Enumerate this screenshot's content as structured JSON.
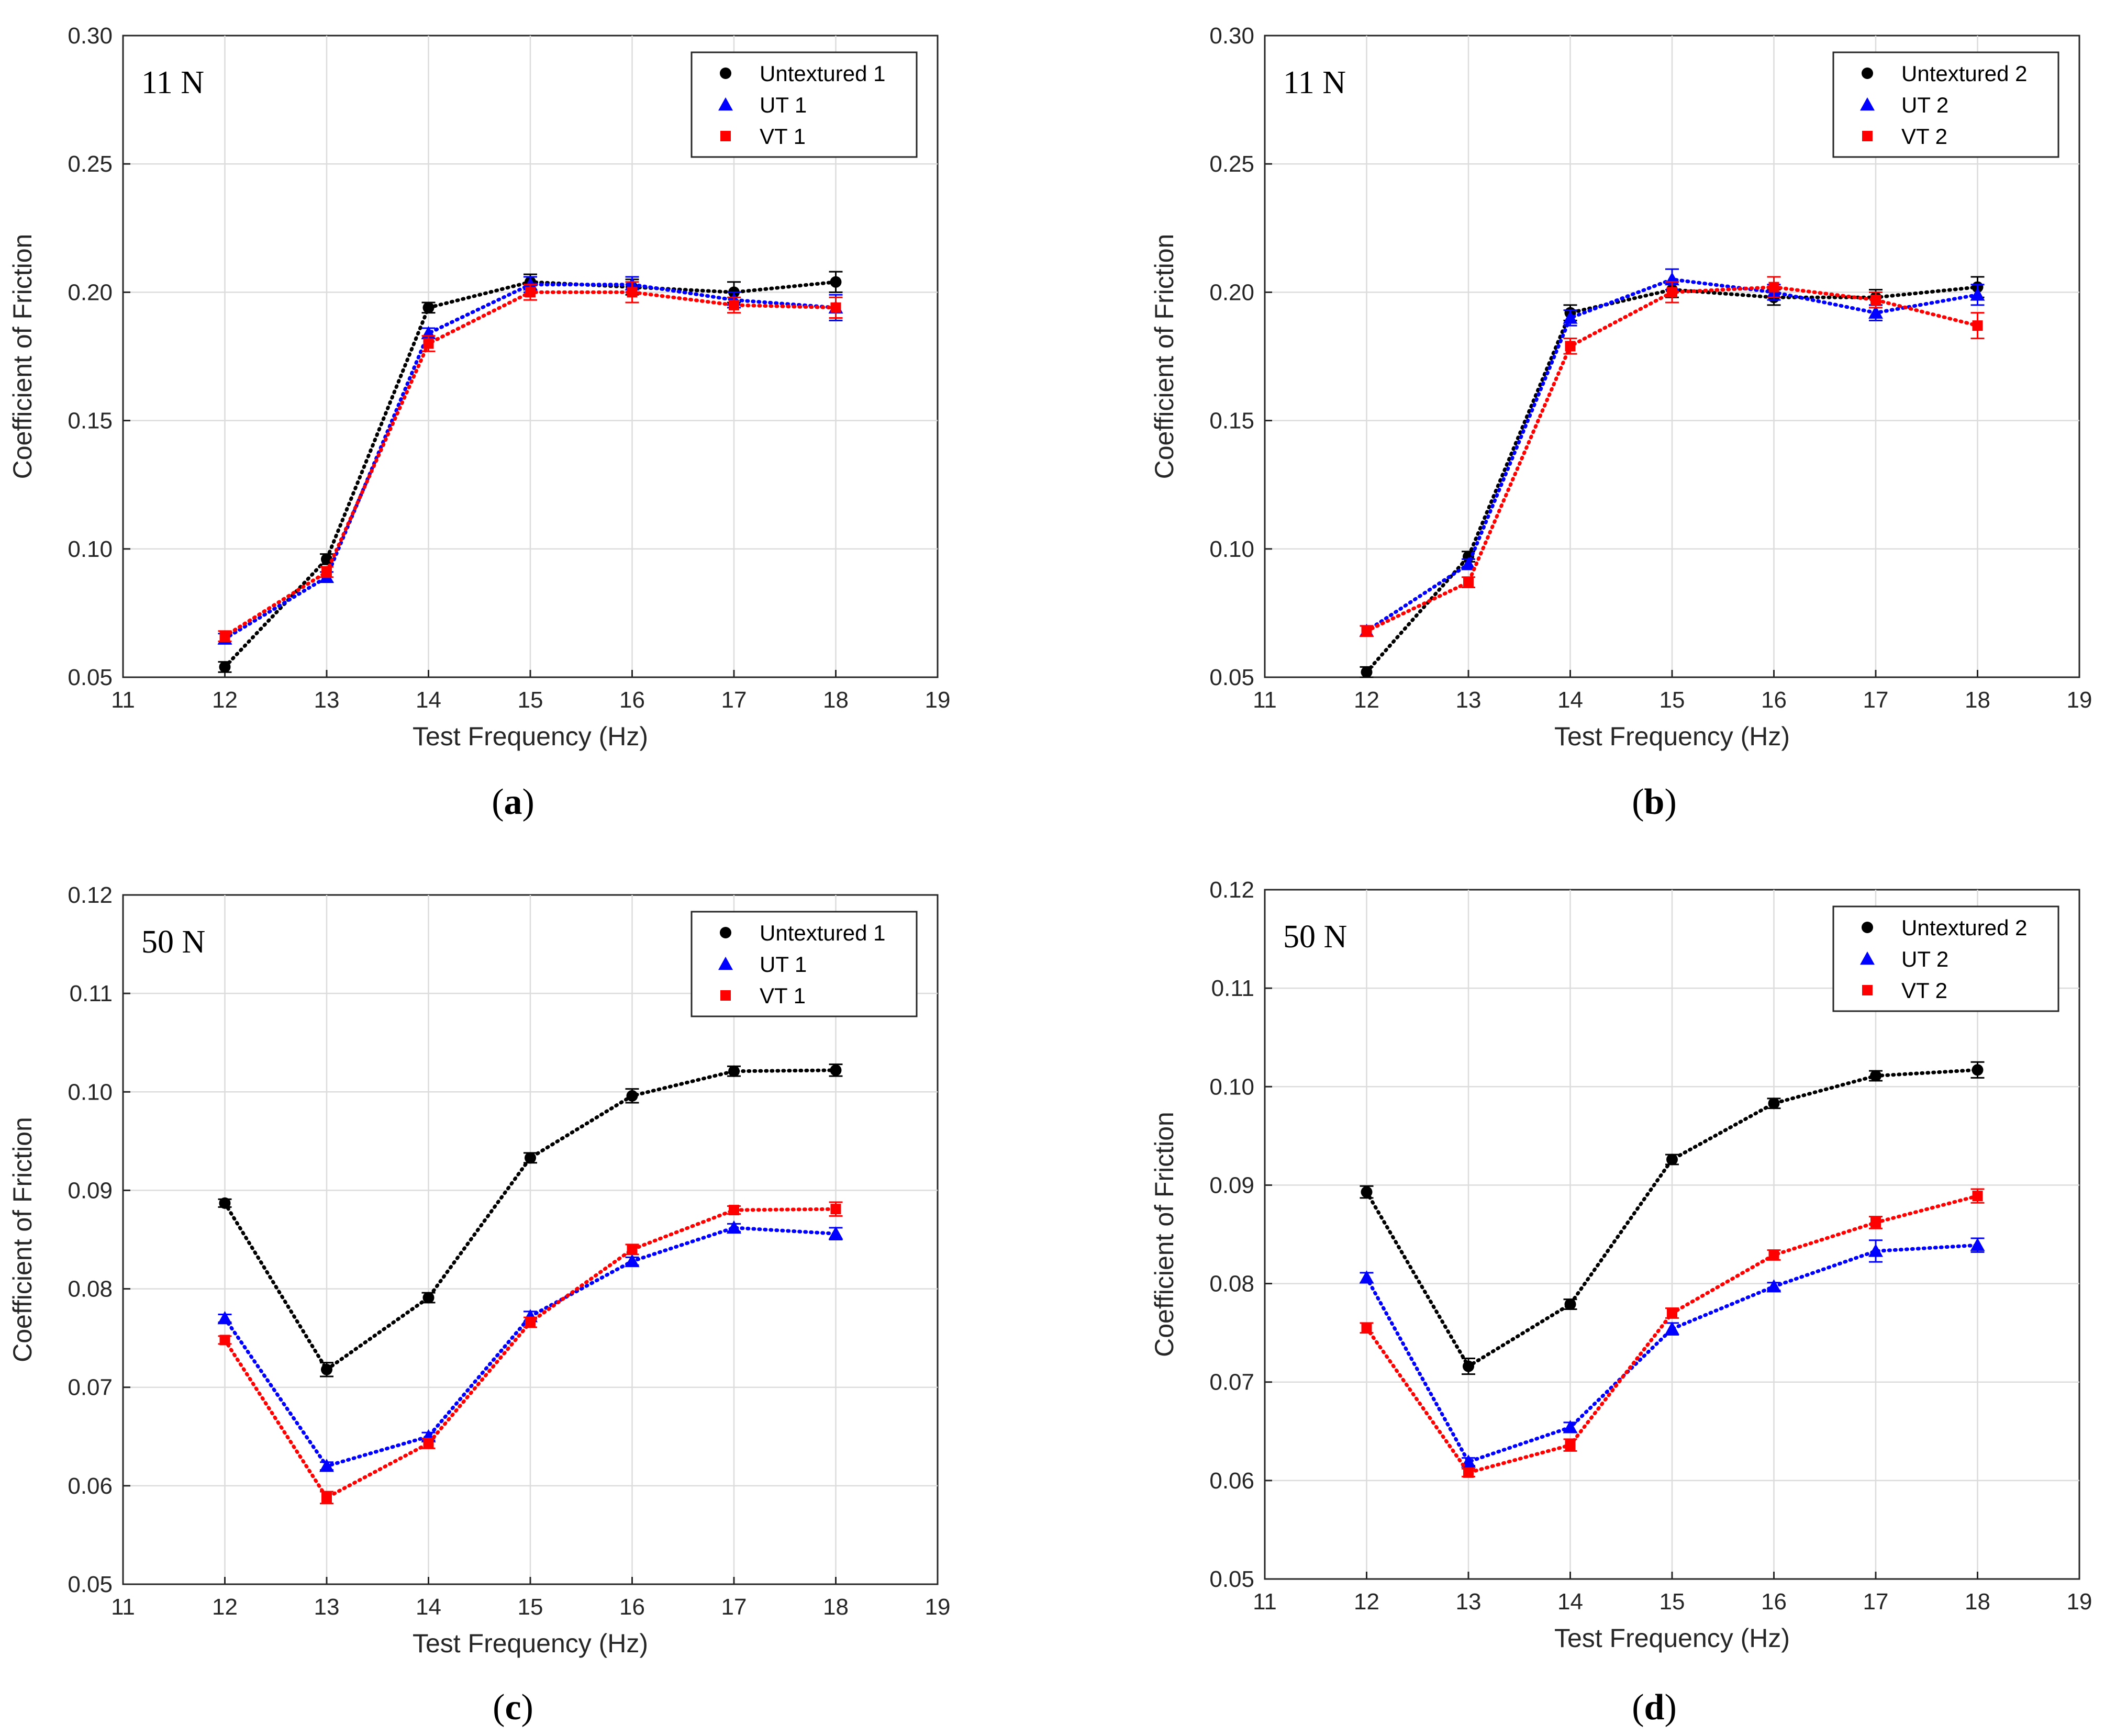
{
  "colors": {
    "untextured": "#000000",
    "ut": "#0000ff",
    "vt": "#ff0000"
  },
  "chart_data": [
    {
      "type": "line",
      "panel": "a",
      "caption": "a",
      "load_label": "11 N",
      "xlabel": "Test Frequency (Hz)",
      "ylabel": "Coefficient of Friction",
      "xlim": [
        11,
        19
      ],
      "ylim": [
        0.05,
        0.3
      ],
      "xticks": [
        11,
        12,
        13,
        14,
        15,
        16,
        17,
        18,
        19
      ],
      "xtick_labels": [
        "11",
        "12",
        "13",
        "14",
        "15",
        "16",
        "17",
        "18",
        "19"
      ],
      "yticks": [
        0.05,
        0.1,
        0.15,
        0.2,
        0.25,
        0.3
      ],
      "ytick_labels": [
        "0.05",
        "0.10",
        "0.15",
        "0.20",
        "0.25",
        "0.30"
      ],
      "grid": true,
      "legend_position": "top-right",
      "x": [
        12,
        13,
        14,
        15,
        16,
        17,
        18
      ],
      "series": [
        {
          "name": "Untextured 1",
          "marker": "circle",
          "color": "#000000",
          "values": [
            0.054,
            0.096,
            0.194,
            0.204,
            0.202,
            0.2,
            0.204
          ],
          "errors": [
            0.002,
            0.002,
            0.002,
            0.003,
            0.003,
            0.004,
            0.004
          ]
        },
        {
          "name": "UT 1",
          "marker": "triangle",
          "color": "#0000ff",
          "values": [
            0.065,
            0.089,
            0.184,
            0.203,
            0.203,
            0.197,
            0.194
          ],
          "errors": [
            0.002,
            0.002,
            0.002,
            0.003,
            0.003,
            0.003,
            0.005
          ]
        },
        {
          "name": "VT 1",
          "marker": "square",
          "color": "#ff0000",
          "values": [
            0.066,
            0.091,
            0.18,
            0.2,
            0.2,
            0.195,
            0.194
          ],
          "errors": [
            0.002,
            0.002,
            0.003,
            0.003,
            0.004,
            0.003,
            0.004
          ]
        }
      ]
    },
    {
      "type": "line",
      "panel": "b",
      "caption": "b",
      "load_label": "11 N",
      "xlabel": "Test Frequency (Hz)",
      "ylabel": "Coefficient of Friction",
      "xlim": [
        11,
        19
      ],
      "ylim": [
        0.05,
        0.3
      ],
      "xticks": [
        11,
        12,
        13,
        14,
        15,
        16,
        17,
        18,
        19
      ],
      "xtick_labels": [
        "11",
        "12",
        "13",
        "14",
        "15",
        "16",
        "17",
        "18",
        "19"
      ],
      "yticks": [
        0.05,
        0.1,
        0.15,
        0.2,
        0.25,
        0.3
      ],
      "ytick_labels": [
        "0.05",
        "0.10",
        "0.15",
        "0.20",
        "0.25",
        "0.30"
      ],
      "grid": true,
      "legend_position": "top-right",
      "x": [
        12,
        13,
        14,
        15,
        16,
        17,
        18
      ],
      "series": [
        {
          "name": "Untextured 2",
          "marker": "circle",
          "color": "#000000",
          "values": [
            0.052,
            0.097,
            0.192,
            0.201,
            0.198,
            0.198,
            0.202
          ],
          "errors": [
            0.002,
            0.002,
            0.003,
            0.003,
            0.003,
            0.003,
            0.004
          ]
        },
        {
          "name": "UT 2",
          "marker": "triangle",
          "color": "#0000ff",
          "values": [
            0.068,
            0.094,
            0.19,
            0.205,
            0.2,
            0.192,
            0.199
          ],
          "errors": [
            0.002,
            0.002,
            0.003,
            0.004,
            0.003,
            0.003,
            0.004
          ]
        },
        {
          "name": "VT 2",
          "marker": "square",
          "color": "#ff0000",
          "values": [
            0.068,
            0.087,
            0.179,
            0.2,
            0.202,
            0.197,
            0.187
          ],
          "errors": [
            0.002,
            0.002,
            0.003,
            0.004,
            0.004,
            0.003,
            0.005
          ]
        }
      ]
    },
    {
      "type": "line",
      "panel": "c",
      "caption": "c",
      "load_label": "50 N",
      "xlabel": "Test Frequency (Hz)",
      "ylabel": "Coefficient of Friction",
      "xlim": [
        11,
        19
      ],
      "ylim": [
        0.05,
        0.12
      ],
      "xticks": [
        11,
        12,
        13,
        14,
        15,
        16,
        17,
        18,
        19
      ],
      "xtick_labels": [
        "11",
        "12",
        "13",
        "14",
        "15",
        "16",
        "17",
        "18",
        "19"
      ],
      "yticks": [
        0.05,
        0.06,
        0.07,
        0.08,
        0.09,
        0.1,
        0.11,
        0.12
      ],
      "ytick_labels": [
        "0.05",
        "0.06",
        "0.07",
        "0.08",
        "0.09",
        "0.10",
        "0.11",
        "0.12"
      ],
      "grid": true,
      "legend_position": "top-right",
      "x": [
        12,
        13,
        14,
        15,
        16,
        17,
        18
      ],
      "series": [
        {
          "name": "Untextured 1",
          "marker": "circle",
          "color": "#000000",
          "values": [
            0.0887,
            0.0718,
            0.0791,
            0.0933,
            0.0996,
            0.1021,
            0.1022
          ],
          "errors": [
            0.0004,
            0.0007,
            0.0005,
            0.0005,
            0.0007,
            0.0005,
            0.0006
          ]
        },
        {
          "name": "UT 1",
          "marker": "triangle",
          "color": "#0000ff",
          "values": [
            0.077,
            0.062,
            0.065,
            0.0772,
            0.0828,
            0.0862,
            0.0856
          ],
          "errors": [
            0.0004,
            0.0004,
            0.0004,
            0.0005,
            0.0004,
            0.0004,
            0.0006
          ]
        },
        {
          "name": "VT 1",
          "marker": "square",
          "color": "#ff0000",
          "values": [
            0.0748,
            0.0588,
            0.0643,
            0.0766,
            0.084,
            0.088,
            0.0881
          ],
          "errors": [
            0.0004,
            0.0006,
            0.0005,
            0.0005,
            0.0005,
            0.0004,
            0.0007
          ]
        }
      ]
    },
    {
      "type": "line",
      "panel": "d",
      "caption": "d",
      "load_label": "50 N",
      "xlabel": "Test Frequency (Hz)",
      "ylabel": "Coefficient of Friction",
      "xlim": [
        11,
        19
      ],
      "ylim": [
        0.05,
        0.12
      ],
      "xticks": [
        11,
        12,
        13,
        14,
        15,
        16,
        17,
        18,
        19
      ],
      "xtick_labels": [
        "11",
        "12",
        "13",
        "14",
        "15",
        "16",
        "17",
        "18",
        "19"
      ],
      "yticks": [
        0.05,
        0.06,
        0.07,
        0.08,
        0.09,
        0.1,
        0.11,
        0.12
      ],
      "ytick_labels": [
        "0.05",
        "0.06",
        "0.07",
        "0.08",
        "0.09",
        "0.10",
        "0.11",
        "0.12"
      ],
      "grid": true,
      "legend_position": "top-right",
      "x": [
        12,
        13,
        14,
        15,
        16,
        17,
        18
      ],
      "series": [
        {
          "name": "Untextured 2",
          "marker": "circle",
          "color": "#000000",
          "values": [
            0.0893,
            0.0716,
            0.0779,
            0.0926,
            0.0983,
            0.1011,
            0.1017
          ],
          "errors": [
            0.0006,
            0.0008,
            0.0005,
            0.0005,
            0.0005,
            0.0005,
            0.0008
          ]
        },
        {
          "name": "UT 2",
          "marker": "triangle",
          "color": "#0000ff",
          "values": [
            0.0806,
            0.0619,
            0.0654,
            0.0754,
            0.0797,
            0.0833,
            0.0839
          ],
          "errors": [
            0.0005,
            0.0004,
            0.0005,
            0.0006,
            0.0004,
            0.0011,
            0.0007
          ]
        },
        {
          "name": "VT 2",
          "marker": "square",
          "color": "#ff0000",
          "values": [
            0.0755,
            0.0608,
            0.0636,
            0.077,
            0.0829,
            0.0862,
            0.0889
          ],
          "errors": [
            0.0005,
            0.0004,
            0.0006,
            0.0005,
            0.0005,
            0.0006,
            0.0007
          ]
        }
      ]
    }
  ]
}
